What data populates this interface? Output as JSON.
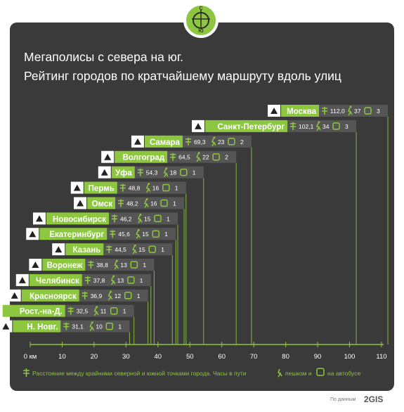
{
  "header": {
    "compass_north": "С",
    "compass_south": "Ю",
    "title_line1": "Мегаполисы с севера на юг.",
    "title_line2": "Рейтинг городов по кратчайшему маршруту вдоль улиц"
  },
  "chart_data": {
    "type": "bar",
    "orientation": "horizontal",
    "xlim": [
      0,
      110
    ],
    "ticks": [
      "0 км",
      "10",
      "20",
      "30",
      "40",
      "50",
      "60",
      "70",
      "80",
      "90",
      "100",
      "110"
    ],
    "tick_values": [
      0,
      10,
      20,
      30,
      40,
      50,
      60,
      70,
      80,
      90,
      100,
      110
    ],
    "rows": [
      {
        "city": "Москва",
        "distance": 112.0,
        "distance_label": "112,0",
        "walk_hours": 37,
        "bus_hours": 3
      },
      {
        "city": "Санкт-Петербург",
        "distance": 102.1,
        "distance_label": "102,1",
        "walk_hours": 34,
        "bus_hours": 3
      },
      {
        "city": "Самара",
        "distance": 69.3,
        "distance_label": "69,3",
        "walk_hours": 23,
        "bus_hours": 2
      },
      {
        "city": "Волгоград",
        "distance": 64.5,
        "distance_label": "64,5",
        "walk_hours": 22,
        "bus_hours": 2
      },
      {
        "city": "Уфа",
        "distance": 54.3,
        "distance_label": "54,3",
        "walk_hours": 18,
        "bus_hours": 1
      },
      {
        "city": "Пермь",
        "distance": 48.8,
        "distance_label": "48,8",
        "walk_hours": 16,
        "bus_hours": 1
      },
      {
        "city": "Омск",
        "distance": 48.2,
        "distance_label": "48,2",
        "walk_hours": 16,
        "bus_hours": 1
      },
      {
        "city": "Новосибирск",
        "distance": 46.2,
        "distance_label": "46,2",
        "walk_hours": 15,
        "bus_hours": 1
      },
      {
        "city": "Екатеринбург",
        "distance": 45.6,
        "distance_label": "45,6",
        "walk_hours": 15,
        "bus_hours": 1
      },
      {
        "city": "Казань",
        "distance": 44.5,
        "distance_label": "44,5",
        "walk_hours": 15,
        "bus_hours": 1
      },
      {
        "city": "Воронеж",
        "distance": 38.8,
        "distance_label": "38,8",
        "walk_hours": 13,
        "bus_hours": 1
      },
      {
        "city": "Челябинск",
        "distance": 37.8,
        "distance_label": "37,8",
        "walk_hours": 13,
        "bus_hours": 1
      },
      {
        "city": "Красноярск",
        "distance": 36.9,
        "distance_label": "36,9",
        "walk_hours": 12,
        "bus_hours": 1
      },
      {
        "city": "Рост.-на-Д.",
        "distance": 32.5,
        "distance_label": "32,5",
        "walk_hours": 11,
        "bus_hours": 1
      },
      {
        "city": "Н. Новг.",
        "distance": 31.1,
        "distance_label": "31,1",
        "walk_hours": 10,
        "bus_hours": 1
      }
    ],
    "colors": {
      "accent": "#8dc63f",
      "card": "#3a3a3a",
      "stat_box": "#555555",
      "grid": "#8dc63f"
    }
  },
  "legend": {
    "text_before": "Расстояние между крайними северной и южной точками города. Часы в пути",
    "text_middle": "пешком и",
    "text_after": "на автобусе"
  },
  "footer": {
    "source": "По данным",
    "brand": "2GIS"
  }
}
